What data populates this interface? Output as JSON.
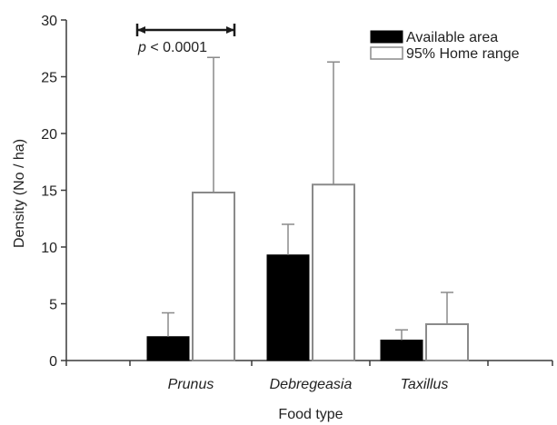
{
  "chart_data": {
    "type": "bar",
    "title": "",
    "xlabel": "Food type",
    "ylabel": "Density (No / ha)",
    "ylim": [
      0,
      30
    ],
    "yticks": [
      0,
      5,
      10,
      15,
      20,
      25,
      30
    ],
    "categories": [
      "Prunus",
      "Debregeasia",
      "Taxillus"
    ],
    "series": [
      {
        "name": "Available area",
        "color": "#000000",
        "fill": "solid",
        "values": [
          2.1,
          9.3,
          1.8
        ],
        "error_upper": [
          4.2,
          12.0,
          2.7
        ]
      },
      {
        "name": "95% Home range",
        "color": "#ffffff",
        "fill": "outline",
        "values": [
          14.8,
          15.5,
          3.2
        ],
        "error_upper": [
          26.7,
          26.3,
          6.0
        ]
      }
    ],
    "legend": "top-right",
    "grid": false,
    "annotation": {
      "p_symbol": "p",
      "rest": " < 0.0001",
      "category": "Prunus"
    }
  }
}
